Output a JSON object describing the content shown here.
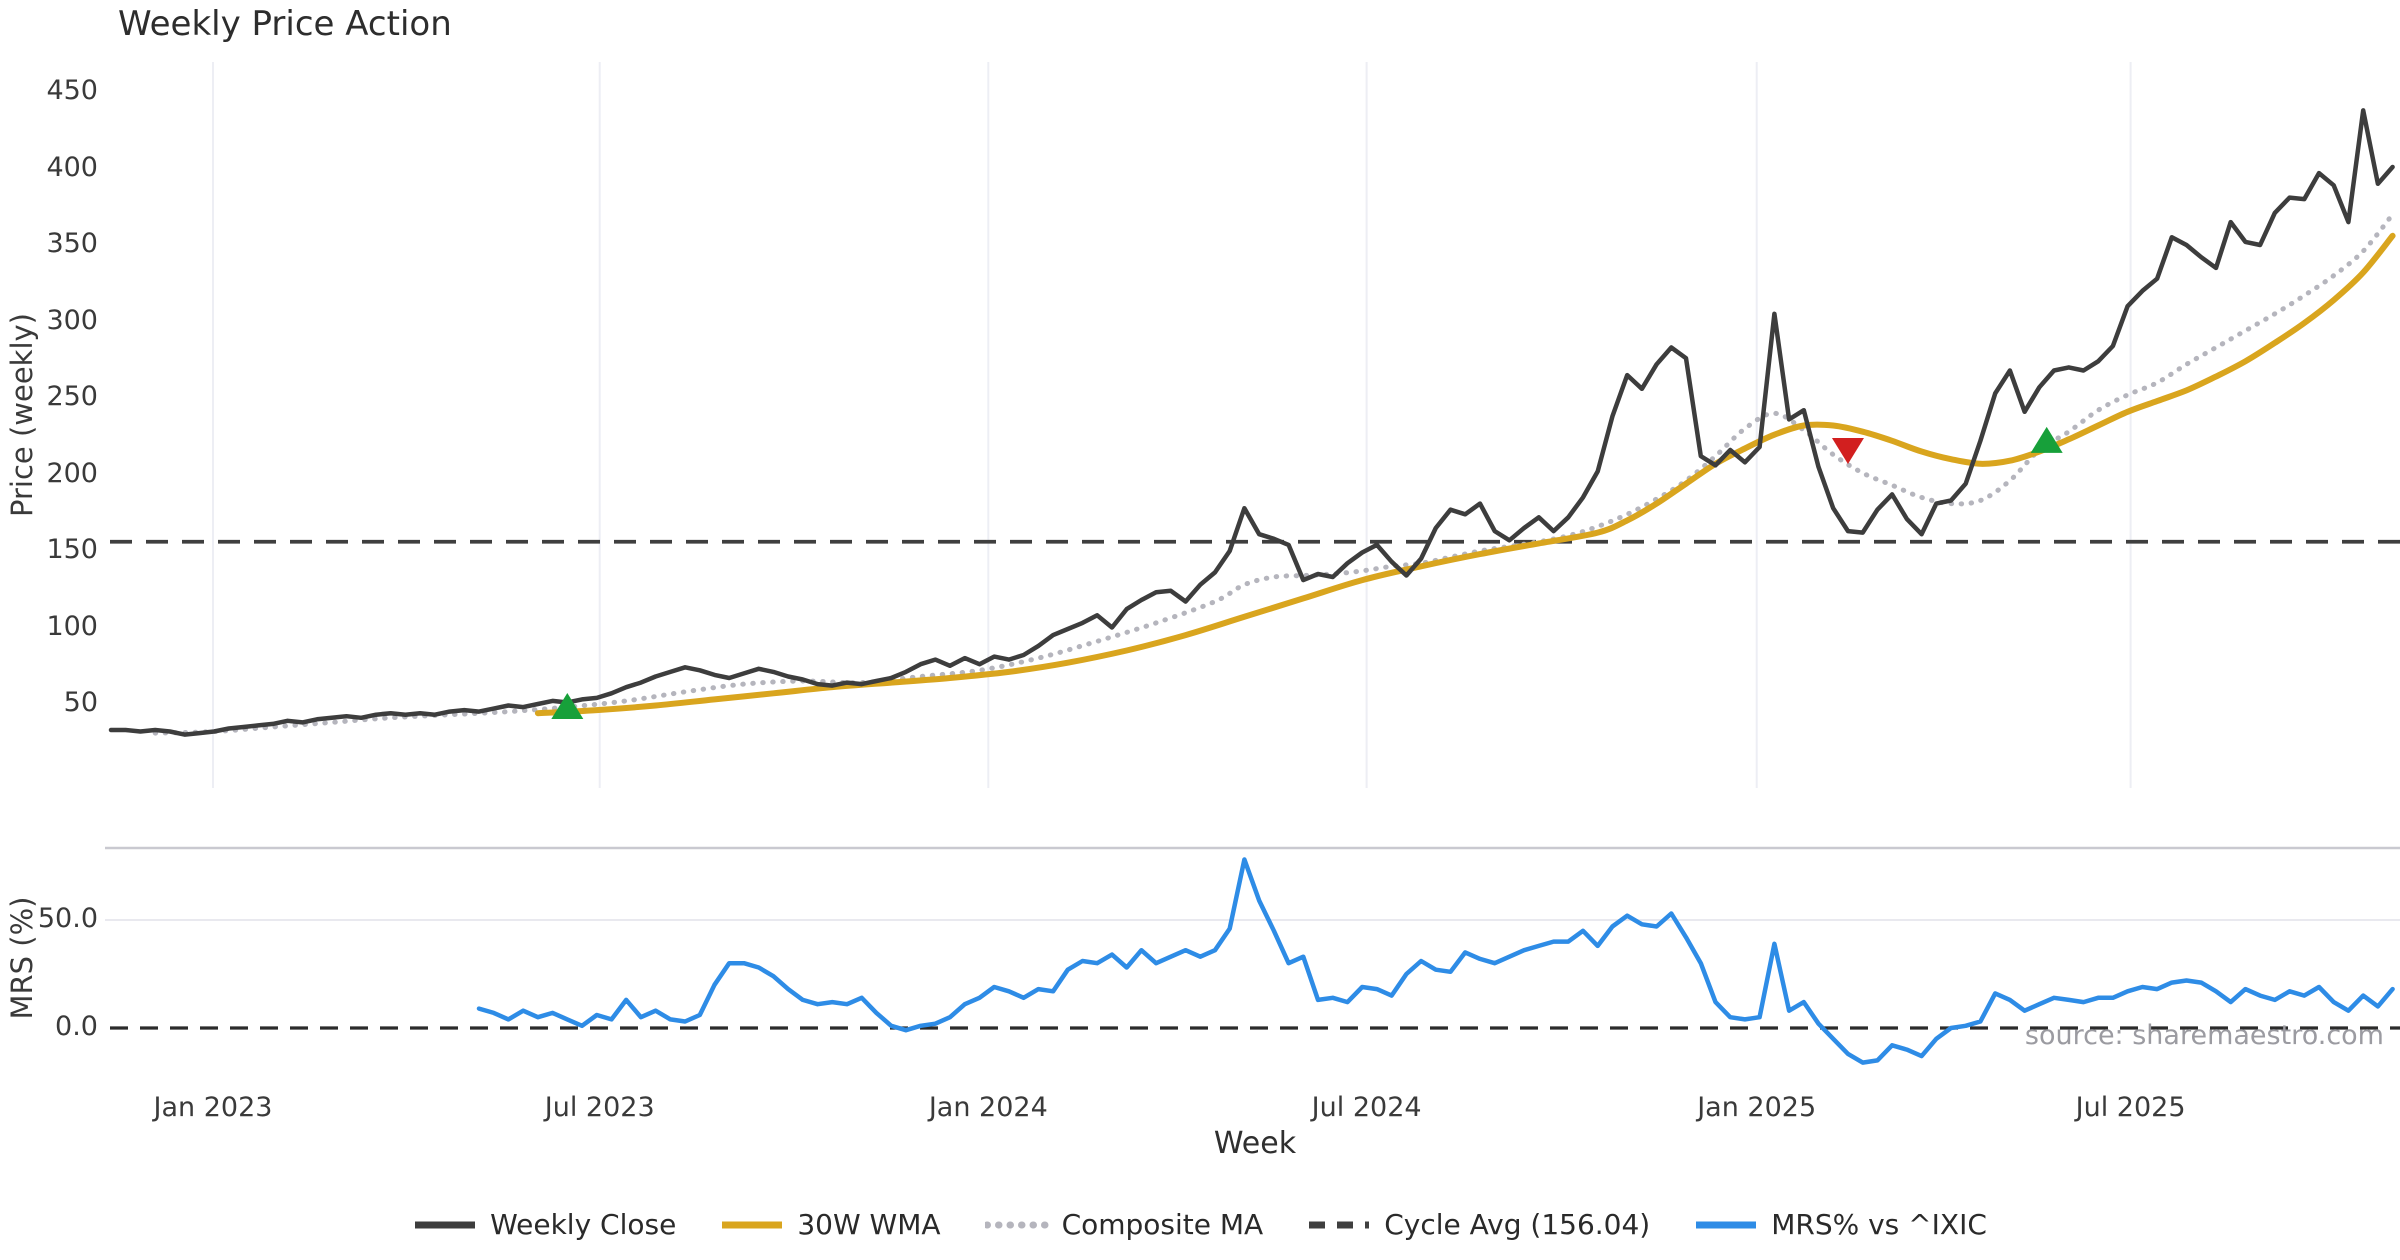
{
  "chart_data": {
    "type": "line",
    "title": "Weekly Price Action",
    "xlabel": "Week",
    "source_note": "source: sharemaestro.com",
    "x_axis": {
      "unit": "weeks",
      "first_point": "mid-Nov 2022",
      "ticks": [
        {
          "label": "Jan 2023",
          "week": 6.93
        },
        {
          "label": "Jul 2023",
          "week": 33.2
        },
        {
          "label": "Jan 2024",
          "week": 59.6
        },
        {
          "label": "Jul 2024",
          "week": 85.3
        },
        {
          "label": "Jan 2025",
          "week": 111.8
        },
        {
          "label": "Jul 2025",
          "week": 137.2
        }
      ]
    },
    "panels": [
      {
        "name": "price",
        "ylabel": "Price (weekly)",
        "yticks": [
          {
            "label": "50",
            "value": 50
          },
          {
            "label": "100",
            "value": 100
          },
          {
            "label": "150",
            "value": 150
          },
          {
            "label": "200",
            "value": 200
          },
          {
            "label": "250",
            "value": 250
          },
          {
            "label": "300",
            "value": 300
          },
          {
            "label": "350",
            "value": 350
          },
          {
            "label": "400",
            "value": 400
          },
          {
            "label": "450",
            "value": 450
          }
        ],
        "cycle_avg": {
          "label": "Cycle Avg (156.04)",
          "value": 156.04,
          "color": "#3f3f3f",
          "style": "dashed"
        },
        "series": [
          {
            "name": "Weekly Close",
            "color": "#3d3d3d",
            "line": "solid",
            "width": 4.5,
            "start_week": 0,
            "step": 1,
            "values": [
              33,
              33,
              32,
              33,
              32,
              30,
              31,
              32,
              34,
              35,
              36,
              37,
              39,
              38,
              40,
              41,
              42,
              41,
              43,
              44,
              43,
              44,
              43,
              45,
              46,
              45,
              47,
              49,
              48,
              50,
              52,
              51,
              53,
              54,
              57,
              61,
              64,
              68,
              71,
              74,
              72,
              69,
              67,
              70,
              73,
              71,
              68,
              66,
              63,
              62,
              64,
              63,
              65,
              67,
              71,
              76,
              79,
              75,
              80,
              76,
              81,
              79,
              82,
              88,
              95,
              99,
              103,
              108,
              100,
              112,
              118,
              123,
              124,
              117,
              128,
              136,
              150,
              178,
              161,
              158,
              154,
              131,
              135,
              133,
              142,
              149,
              154,
              143,
              134,
              145,
              165,
              177,
              174,
              181,
              163,
              157,
              165,
              172,
              163,
              172,
              185,
              202,
              238,
              265,
              256,
              272,
              283,
              276,
              212,
              206,
              216,
              208,
              218,
              305,
              236,
              242,
              205,
              178,
              163,
              162,
              177,
              187,
              171,
              161,
              181,
              183,
              194,
              222,
              253,
              268,
              241,
              257,
              268,
              270,
              268,
              274,
              284,
              310,
              320,
              328,
              355,
              350,
              342,
              335,
              365,
              352,
              350,
              371,
              381,
              380,
              397,
              389,
              365,
              438,
              390,
              401
            ]
          },
          {
            "name": "30W WMA",
            "color": "#d9a51e",
            "line": "solid",
            "width": 6,
            "smooth": true,
            "anchor_weeks": [
              29,
              33,
              37,
              41,
              45,
              49,
              53,
              57,
              61,
              65,
              69,
              73,
              77,
              81,
              85,
              89,
              93,
              97,
              101,
              103,
              105,
              107,
              109,
              111,
              113,
              115,
              117,
              119,
              121,
              123,
              125,
              127,
              129,
              131,
              133,
              135,
              137,
              139,
              141,
              143,
              145,
              147,
              149,
              151,
              153,
              155
            ],
            "anchor_values": [
              44,
              46,
              49,
              53,
              57,
              61,
              64,
              67,
              71,
              77,
              85,
              95,
              107,
              119,
              131,
              140,
              148,
              155,
              162,
              170,
              181,
              194,
              207,
              217,
              226,
              232,
              232,
              228,
              222,
              215,
              210,
              207,
              209,
              215,
              223,
              232,
              241,
              248,
              255,
              264,
              274,
              286,
              299,
              314,
              332,
              356
            ]
          },
          {
            "name": "Composite MA",
            "color": "#b5b5bd",
            "line": "dotted",
            "width": 5,
            "smooth": true,
            "anchor_weeks": [
              3,
              7,
              11,
              15,
              19,
              23,
              27,
              31,
              35,
              39,
              43,
              47,
              51,
              55,
              59,
              63,
              67,
              71,
              75,
              77,
              79,
              81,
              83,
              85,
              87,
              89,
              91,
              93,
              95,
              97,
              99,
              101,
              103,
              105,
              107,
              109,
              111,
              113,
              115,
              117,
              119,
              121,
              123,
              125,
              127,
              129,
              131,
              133,
              135,
              137,
              139,
              141,
              143,
              145,
              147,
              149,
              151,
              153,
              155
            ],
            "anchor_values": [
              31,
              32,
              35,
              38,
              41,
              43,
              45,
              48,
              52,
              58,
              63,
              65,
              64,
              68,
              72,
              80,
              91,
              103,
              117,
              128,
              133,
              134,
              135,
              137,
              140,
              142,
              146,
              150,
              153,
              156,
              160,
              166,
              174,
              184,
              196,
              212,
              230,
              240,
              229,
              213,
              201,
              193,
              185,
              181,
              183,
              196,
              216,
              228,
              242,
              252,
              260,
              272,
              283,
              294,
              305,
              317,
              330,
              346,
              370
            ]
          }
        ],
        "markers": [
          {
            "type": "buy",
            "shape": "triangle-up",
            "color": "#17a03a",
            "week": 31,
            "value": 48
          },
          {
            "type": "sell",
            "shape": "triangle-down",
            "color": "#d21f1f",
            "week": 118,
            "value": 216
          },
          {
            "type": "buy",
            "shape": "triangle-up",
            "color": "#17a03a",
            "week": 131.5,
            "value": 222
          }
        ]
      },
      {
        "name": "mrs",
        "ylabel": "MRS (%)",
        "yticks": [
          {
            "label": "0.0",
            "value": 0
          },
          {
            "label": "50.0",
            "value": 50
          }
        ],
        "zero_line": {
          "value": 0,
          "style": "dashed",
          "color": "#2b2b2b"
        },
        "gridline_value": 50,
        "series": [
          {
            "name": "MRS% vs ^IXIC",
            "color": "#2e8ce6",
            "line": "solid",
            "width": 4.5,
            "start_week": 25,
            "step": 1,
            "values": [
              9,
              7,
              4,
              8,
              5,
              7,
              4,
              1,
              6,
              4,
              13,
              5,
              8,
              4,
              3,
              6,
              20,
              30,
              30,
              28,
              24,
              18,
              13,
              11,
              12,
              11,
              14,
              7,
              1,
              -1,
              1,
              2,
              5,
              11,
              14,
              19,
              17,
              14,
              18,
              17,
              27,
              31,
              30,
              34,
              28,
              36,
              30,
              33,
              36,
              33,
              36,
              46,
              78,
              59,
              45,
              30,
              33,
              13,
              14,
              12,
              19,
              18,
              15,
              25,
              31,
              27,
              26,
              35,
              32,
              30,
              33,
              36,
              38,
              40,
              40,
              45,
              38,
              47,
              52,
              48,
              47,
              53,
              42,
              30,
              12,
              5,
              4,
              5,
              39,
              8,
              12,
              2,
              -5,
              -12,
              -16,
              -15,
              -8,
              -10,
              -13,
              -5,
              0,
              1,
              3,
              16,
              13,
              8,
              11,
              14,
              13,
              12,
              14,
              14,
              17,
              19,
              18,
              21,
              22,
              21,
              17,
              12,
              18,
              15,
              13,
              17,
              15,
              19,
              12,
              8,
              15,
              10,
              18
            ]
          }
        ]
      }
    ],
    "legend": [
      {
        "label": "Weekly Close",
        "swatch": "solid",
        "color": "#3d3d3d"
      },
      {
        "label": "30W WMA",
        "swatch": "solid",
        "color": "#d9a51e"
      },
      {
        "label": "Composite MA",
        "swatch": "dotted",
        "color": "#b5b5bd"
      },
      {
        "label": "Cycle Avg (156.04)",
        "swatch": "dashed",
        "color": "#3f3f3f"
      },
      {
        "label": "MRS% vs ^IXIC",
        "swatch": "solid",
        "color": "#2e8ce6"
      }
    ]
  }
}
